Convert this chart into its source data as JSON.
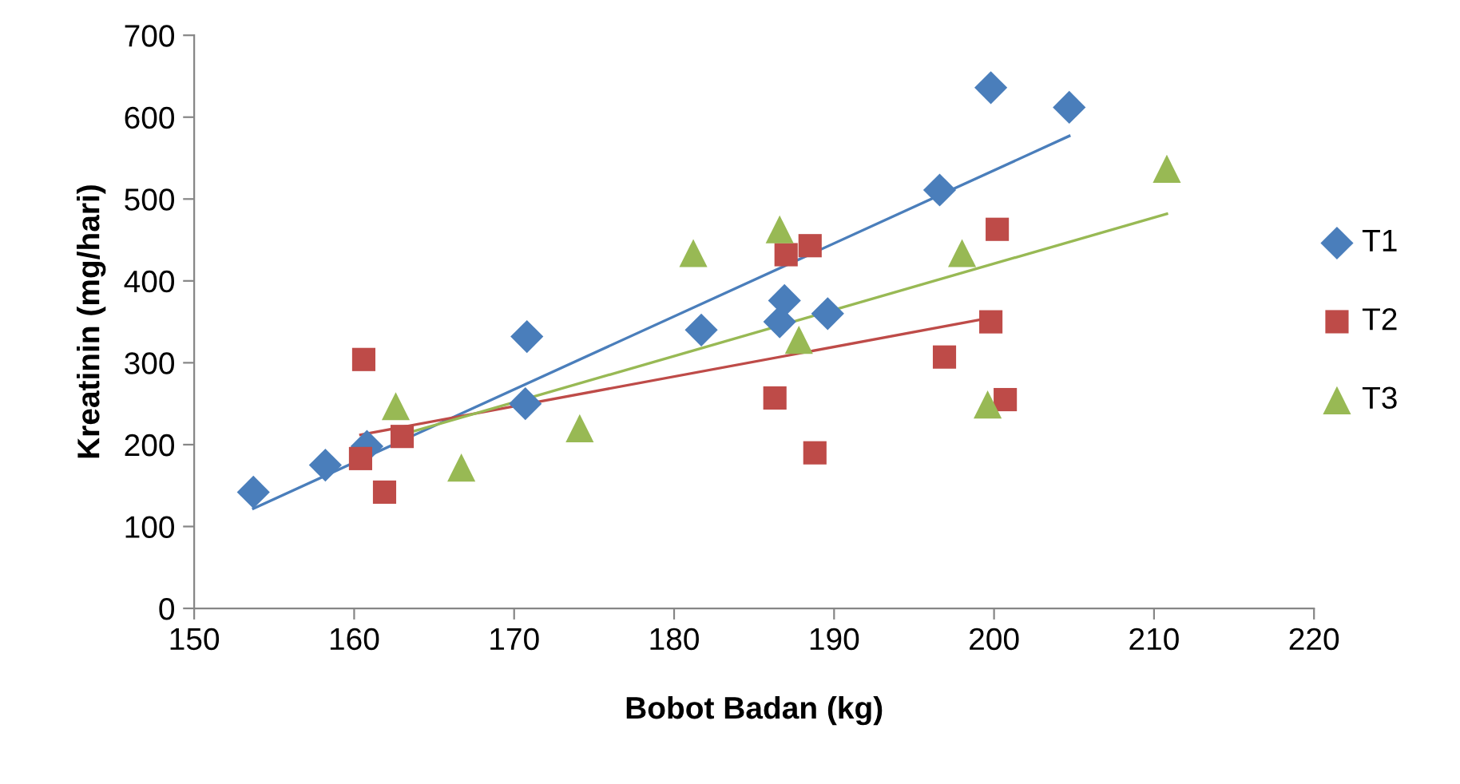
{
  "chart_data": {
    "type": "scatter",
    "xlabel": "Bobot Badan (kg)",
    "ylabel": "Kreatinin (mg/hari)",
    "xlim": [
      150,
      220
    ],
    "xticks": [
      150,
      160,
      170,
      180,
      190,
      200,
      210,
      220
    ],
    "ylim": [
      0,
      700
    ],
    "yticks": [
      0,
      100,
      200,
      300,
      400,
      500,
      600,
      700
    ],
    "legend": "right",
    "series": [
      {
        "name": "T1",
        "color": "#4a7ebb",
        "marker": "diamond",
        "x": [
          153.7,
          158.2,
          160.8,
          170.7,
          170.8,
          181.7,
          186.6,
          186.9,
          189.6,
          196.6,
          199.8,
          204.7
        ],
        "values": [
          142,
          175,
          198,
          250,
          332,
          340,
          350,
          376,
          360,
          511,
          636,
          612
        ]
      },
      {
        "name": "T2",
        "color": "#be4b48",
        "marker": "square",
        "x": [
          160.4,
          160.6,
          161.9,
          163.0,
          186.3,
          187.0,
          188.5,
          188.8,
          196.9,
          199.8,
          200.2,
          200.7
        ],
        "values": [
          183,
          304,
          142,
          210,
          257,
          432,
          443,
          190,
          307,
          350,
          463,
          255
        ]
      },
      {
        "name": "T3",
        "color": "#98b954",
        "marker": "triangle",
        "x": [
          162.6,
          166.7,
          174.1,
          181.2,
          186.6,
          187.8,
          198.0,
          199.6,
          210.8
        ],
        "values": [
          247,
          172,
          220,
          434,
          463,
          328,
          434,
          249,
          537
        ]
      },
      {
        "type": "line",
        "color": "#4a7ebb",
        "marker": "none",
        "x": [
          153.7,
          204.7
        ],
        "values": [
          122,
          577
        ]
      },
      {
        "type": "line",
        "color": "#be4b48",
        "marker": "none",
        "x": [
          160.4,
          199.8
        ],
        "values": [
          212,
          355
        ]
      },
      {
        "type": "line",
        "color": "#98b954",
        "marker": "none",
        "x": [
          162.6,
          210.8
        ],
        "values": [
          210,
          482
        ]
      }
    ]
  }
}
